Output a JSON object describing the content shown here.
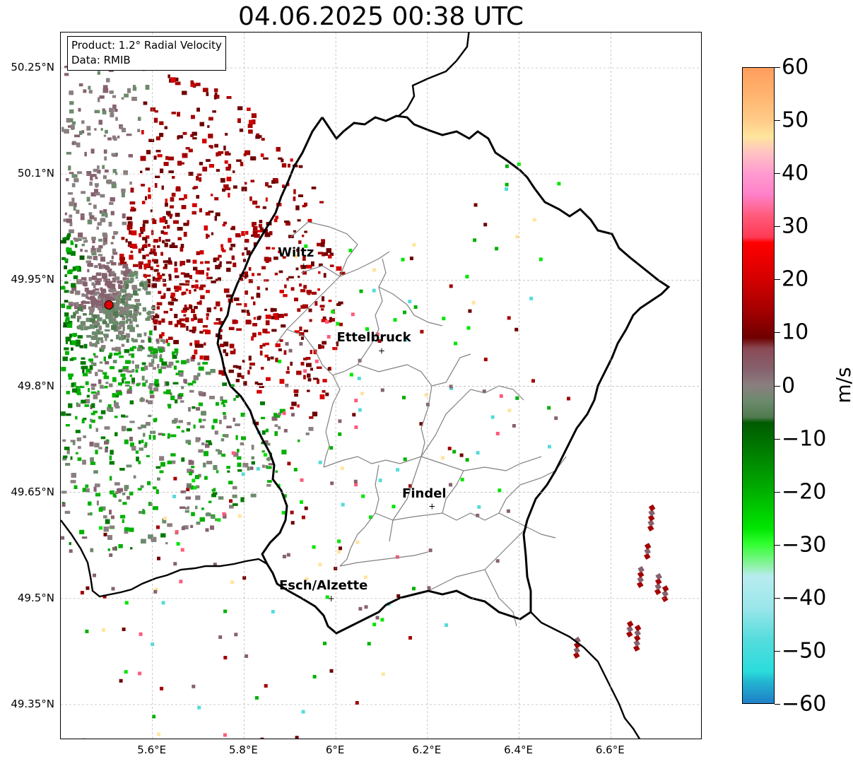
{
  "title": "04.06.2025 00:38 UTC",
  "info_box": {
    "product": "Product: 1.2° Radial Velocity",
    "data": "Data: RMIB"
  },
  "axes": {
    "lat_ticks": [
      "50.25°N",
      "50.1°N",
      "49.95°N",
      "49.8°N",
      "49.65°N",
      "49.5°N",
      "49.35°N"
    ],
    "lat_values": [
      50.25,
      50.1,
      49.95,
      49.8,
      49.65,
      49.5,
      49.35
    ],
    "lon_ticks": [
      "5.6°E",
      "5.8°E",
      "6°E",
      "6.2°E",
      "6.4°E",
      "6.6°E"
    ],
    "lon_values": [
      5.6,
      5.8,
      6.0,
      6.2,
      6.4,
      6.6
    ],
    "lon_range": [
      5.4,
      6.8
    ],
    "lat_range": [
      49.3,
      50.3
    ],
    "grid": true
  },
  "cities": [
    {
      "name": "Wiltz",
      "lon": 5.93,
      "lat": 49.97
    },
    {
      "name": "Ettelbruck",
      "lon": 6.1,
      "lat": 49.85
    },
    {
      "name": "Findel",
      "lon": 6.21,
      "lat": 49.63
    },
    {
      "name": "Esch/Alzette",
      "lon": 5.99,
      "lat": 49.5
    }
  ],
  "radar_site": {
    "lon": 5.505,
    "lat": 49.915,
    "color": "#e00000"
  },
  "colorbar": {
    "label": "m/s",
    "ticks": [
      "60",
      "50",
      "40",
      "30",
      "20",
      "10",
      "0",
      "−10",
      "−20",
      "−30",
      "−40",
      "−50",
      "−60"
    ],
    "tick_values": [
      60,
      50,
      40,
      30,
      20,
      10,
      0,
      -10,
      -20,
      -30,
      -40,
      -50,
      -60
    ],
    "range": [
      -60,
      60
    ],
    "stops": [
      {
        "v": 60,
        "c": "#ff9e5e"
      },
      {
        "v": 55,
        "c": "#ffb36e"
      },
      {
        "v": 50,
        "c": "#ffcc88"
      },
      {
        "v": 47,
        "c": "#ffe59e"
      },
      {
        "v": 44,
        "c": "#ffc3c3"
      },
      {
        "v": 40,
        "c": "#ff9ad0"
      },
      {
        "v": 36,
        "c": "#ff80c8"
      },
      {
        "v": 32,
        "c": "#ff5a7a"
      },
      {
        "v": 28,
        "c": "#ff3a55"
      },
      {
        "v": 27,
        "c": "#ff0000"
      },
      {
        "v": 20,
        "c": "#d40000"
      },
      {
        "v": 14,
        "c": "#a30000"
      },
      {
        "v": 9,
        "c": "#6e0000"
      },
      {
        "v": 7,
        "c": "#8a4a55"
      },
      {
        "v": 3,
        "c": "#86626e"
      },
      {
        "v": 0,
        "c": "#8a7f7f"
      },
      {
        "v": -3,
        "c": "#6c8a6c"
      },
      {
        "v": -6,
        "c": "#4f7a4f"
      },
      {
        "v": -7,
        "c": "#005a00"
      },
      {
        "v": -12,
        "c": "#007a00"
      },
      {
        "v": -20,
        "c": "#00b000"
      },
      {
        "v": -27,
        "c": "#00e600"
      },
      {
        "v": -30,
        "c": "#33ff33"
      },
      {
        "v": -34,
        "c": "#8ef2a4"
      },
      {
        "v": -36,
        "c": "#b8ecf0"
      },
      {
        "v": -42,
        "c": "#9ae6ea"
      },
      {
        "v": -48,
        "c": "#55dcdc"
      },
      {
        "v": -54,
        "c": "#2adcdc"
      },
      {
        "v": -56,
        "c": "#22b4d0"
      },
      {
        "v": -60,
        "c": "#2080c8"
      }
    ]
  },
  "colors": {
    "border_country": "#000000",
    "border_canton": "#808080",
    "grid": "#b0b0b0"
  }
}
